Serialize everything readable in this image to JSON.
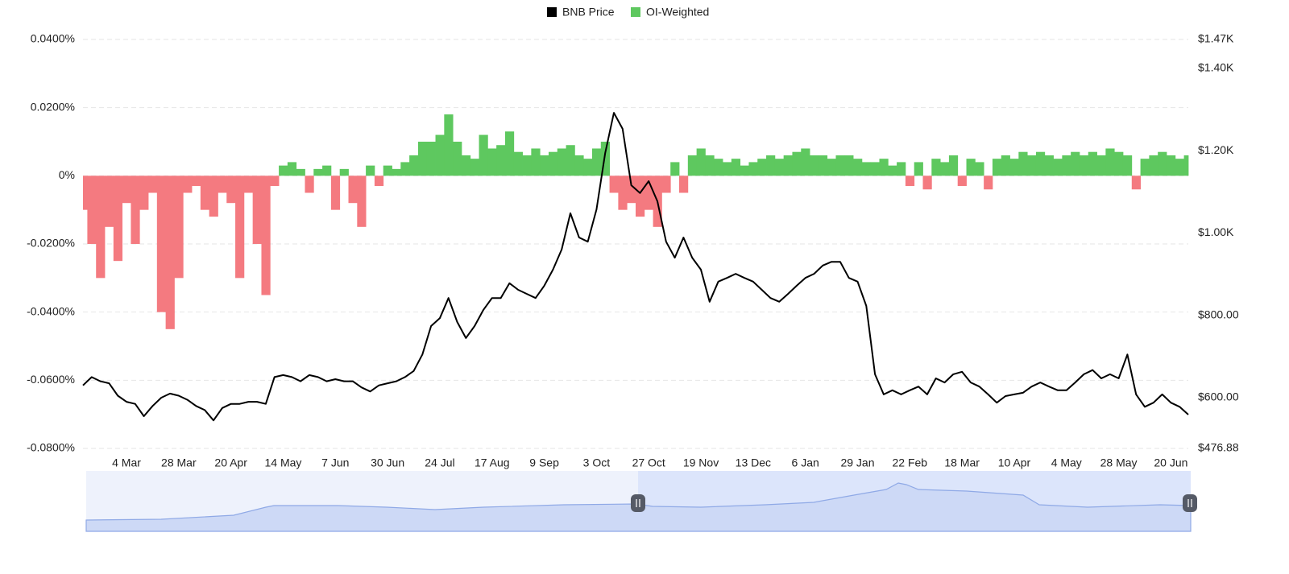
{
  "chart_data": {
    "type": "combo",
    "categories": [
      null,
      null,
      null,
      null,
      null,
      "4 Mar",
      null,
      null,
      null,
      null,
      null,
      "28 Mar",
      null,
      null,
      null,
      null,
      null,
      "20 Apr",
      null,
      null,
      null,
      null,
      null,
      "14 May",
      null,
      null,
      null,
      null,
      null,
      "7 Jun",
      null,
      null,
      null,
      null,
      null,
      "30 Jun",
      null,
      null,
      null,
      null,
      null,
      "24 Jul",
      null,
      null,
      null,
      null,
      null,
      "17 Aug",
      null,
      null,
      null,
      null,
      null,
      "9 Sep",
      null,
      null,
      null,
      null,
      null,
      "3 Oct",
      null,
      null,
      null,
      null,
      null,
      "27 Oct",
      null,
      null,
      null,
      null,
      null,
      "19 Nov",
      null,
      null,
      null,
      null,
      null,
      "13 Dec",
      null,
      null,
      null,
      null,
      null,
      "6 Jan",
      null,
      null,
      null,
      null,
      null,
      "29 Jan",
      null,
      null,
      null,
      null,
      null,
      "22 Feb",
      null,
      null,
      null,
      null,
      null,
      "18 Mar",
      null,
      null,
      null,
      null,
      null,
      "10 Apr",
      null,
      null,
      null,
      null,
      null,
      "4 May",
      null,
      null,
      null,
      null,
      null,
      "28 May",
      null,
      null,
      null,
      null,
      null,
      "20 Jun",
      null,
      null
    ],
    "series": [
      {
        "name": "BNB Price",
        "type": "line",
        "axis": "y2",
        "color": "#000000",
        "values": [
          630,
          650,
          640,
          635,
          605,
          590,
          585,
          555,
          580,
          600,
          610,
          605,
          595,
          580,
          570,
          545,
          575,
          585,
          585,
          590,
          590,
          585,
          650,
          655,
          650,
          640,
          655,
          650,
          640,
          645,
          640,
          640,
          625,
          615,
          630,
          635,
          640,
          650,
          665,
          705,
          774,
          793,
          842,
          784,
          745,
          774,
          813,
          842,
          842,
          878,
          862,
          852,
          842,
          872,
          911,
          960,
          1048,
          989,
          979,
          1057,
          1194,
          1292,
          1253,
          1116,
          1097,
          1126,
          1077,
          979,
          940,
          989,
          940,
          911,
          833,
          882,
          891,
          901,
          891,
          882,
          862,
          842,
          833,
          852,
          872,
          891,
          901,
          921,
          930,
          930,
          891,
          882,
          823,
          657,
          608,
          618,
          608,
          618,
          627,
          608,
          647,
          637,
          657,
          663,
          637,
          627,
          608,
          588,
          604,
          608,
          612,
          627,
          637,
          627,
          618,
          618,
          637,
          657,
          667,
          647,
          657,
          647,
          705,
          608,
          578,
          588,
          608,
          588,
          578,
          559
        ]
      },
      {
        "name": "OI-Weighted",
        "type": "bar",
        "color": "#5ec85f",
        "negative_color": "#f47a80",
        "values": [
          -0.01,
          -0.02,
          -0.03,
          -0.015,
          -0.025,
          -0.008,
          -0.02,
          -0.01,
          -0.005,
          -0.04,
          -0.045,
          -0.03,
          -0.005,
          -0.003,
          -0.01,
          -0.012,
          -0.005,
          -0.008,
          -0.03,
          -0.005,
          -0.02,
          -0.035,
          -0.003,
          0.003,
          0.004,
          0.002,
          -0.005,
          0.002,
          0.003,
          -0.01,
          0.002,
          -0.008,
          -0.015,
          0.003,
          -0.003,
          0.003,
          0.002,
          0.004,
          0.006,
          0.01,
          0.01,
          0.012,
          0.018,
          0.01,
          0.006,
          0.005,
          0.012,
          0.008,
          0.009,
          0.013,
          0.007,
          0.006,
          0.008,
          0.006,
          0.007,
          0.008,
          0.009,
          0.006,
          0.005,
          0.008,
          0.01,
          -0.005,
          -0.01,
          -0.008,
          -0.012,
          -0.01,
          -0.015,
          -0.005,
          0.004,
          -0.005,
          0.006,
          0.008,
          0.006,
          0.005,
          0.004,
          0.005,
          0.003,
          0.004,
          0.005,
          0.006,
          0.005,
          0.006,
          0.007,
          0.008,
          0.006,
          0.006,
          0.005,
          0.006,
          0.006,
          0.005,
          0.004,
          0.004,
          0.005,
          0.003,
          0.004,
          -0.003,
          0.004,
          -0.004,
          0.005,
          0.004,
          0.006,
          -0.003,
          0.005,
          0.004,
          -0.004,
          0.005,
          0.006,
          0.005,
          0.007,
          0.006,
          0.007,
          0.006,
          0.005,
          0.006,
          0.007,
          0.006,
          0.007,
          0.006,
          0.008,
          0.007,
          0.006,
          -0.004,
          0.005,
          0.006,
          0.007,
          0.006,
          0.005,
          0.006
        ]
      }
    ],
    "ylim": [
      -0.08,
      0.04
    ],
    "yticks": [
      {
        "value": 0.04,
        "label": "0.0400%"
      },
      {
        "value": 0.02,
        "label": "0.0200%"
      },
      {
        "value": 0,
        "label": "0%"
      },
      {
        "value": -0.02,
        "label": "-0.0200%"
      },
      {
        "value": -0.04,
        "label": "-0.0400%"
      },
      {
        "value": -0.06,
        "label": "-0.0600%"
      },
      {
        "value": -0.08,
        "label": "-0.0800%"
      }
    ],
    "y2lim": [
      476.88,
      1470
    ],
    "y2ticks": [
      {
        "value": 1470,
        "label": "$1.47K"
      },
      {
        "value": 1400,
        "label": "$1.40K"
      },
      {
        "value": 1200,
        "label": "$1.20K"
      },
      {
        "value": 1000,
        "label": "$1.00K"
      },
      {
        "value": 800,
        "label": "$800.00"
      },
      {
        "value": 600,
        "label": "$600.00"
      },
      {
        "value": 476.88,
        "label": "$476.88"
      }
    ],
    "grid": true,
    "legend": "top"
  }
}
